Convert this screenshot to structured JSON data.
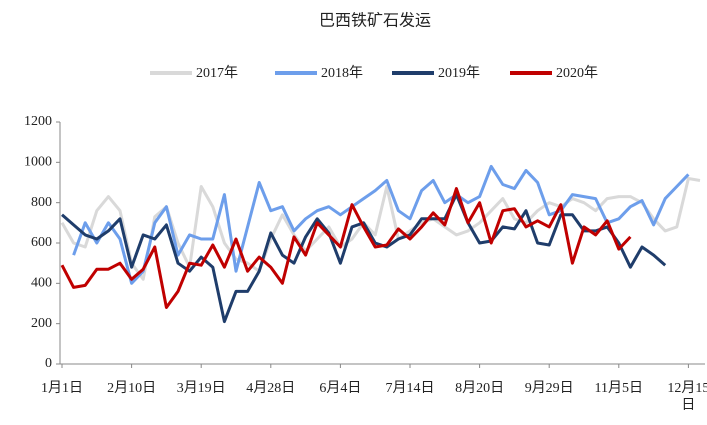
{
  "chart_data": {
    "type": "line",
    "title": "巴西铁矿石发运",
    "categories": [
      "1月1日",
      null,
      null,
      null,
      null,
      null,
      "2月10日",
      null,
      null,
      null,
      null,
      null,
      "3月19日",
      null,
      null,
      null,
      null,
      null,
      "4月28日",
      null,
      null,
      null,
      null,
      null,
      "6月4日",
      null,
      null,
      null,
      null,
      null,
      "7月14日",
      null,
      null,
      null,
      null,
      null,
      "8月20日",
      null,
      null,
      null,
      null,
      null,
      "9月29日",
      null,
      null,
      null,
      null,
      null,
      "11月5日",
      null,
      null,
      null,
      null,
      null,
      "12月15日",
      null
    ],
    "series": [
      {
        "name": "2017年",
        "color": "#d9d9d9",
        "values": [
          700,
          600,
          580,
          760,
          830,
          760,
          500,
          420,
          730,
          780,
          600,
          480,
          880,
          780,
          600,
          520,
          500,
          460,
          620,
          740,
          640,
          560,
          620,
          680,
          580,
          620,
          700,
          640,
          880,
          620,
          660,
          700,
          720,
          680,
          640,
          660,
          700,
          760,
          820,
          720,
          700,
          760,
          800,
          780,
          820,
          800,
          760,
          820,
          830,
          830,
          800,
          720,
          660,
          680,
          920,
          910
        ]
      },
      {
        "name": "2018年",
        "color": "#6d9eeb",
        "values": [
          null,
          540,
          700,
          600,
          700,
          620,
          400,
          460,
          700,
          780,
          540,
          640,
          620,
          620,
          840,
          460,
          680,
          900,
          760,
          780,
          660,
          720,
          760,
          780,
          740,
          780,
          820,
          860,
          910,
          760,
          720,
          860,
          910,
          800,
          840,
          800,
          830,
          980,
          890,
          870,
          960,
          900,
          740,
          760,
          840,
          830,
          820,
          700,
          720,
          780,
          810,
          690,
          820,
          880,
          940,
          null
        ]
      },
      {
        "name": "2019年",
        "color": "#1f3d6b",
        "values": [
          740,
          690,
          640,
          620,
          660,
          720,
          480,
          640,
          620,
          690,
          500,
          460,
          530,
          480,
          210,
          360,
          360,
          460,
          650,
          540,
          500,
          630,
          720,
          650,
          500,
          680,
          700,
          600,
          580,
          620,
          640,
          720,
          720,
          720,
          840,
          700,
          600,
          610,
          680,
          670,
          760,
          600,
          590,
          740,
          740,
          660,
          660,
          680,
          600,
          480,
          580,
          540,
          490,
          null,
          null,
          null
        ]
      },
      {
        "name": "2020年",
        "color": "#c00000",
        "values": [
          490,
          380,
          390,
          470,
          470,
          500,
          420,
          470,
          580,
          280,
          360,
          500,
          490,
          590,
          480,
          620,
          460,
          530,
          480,
          400,
          630,
          540,
          700,
          640,
          580,
          790,
          680,
          580,
          590,
          670,
          620,
          680,
          750,
          690,
          870,
          700,
          800,
          600,
          760,
          770,
          680,
          710,
          680,
          790,
          500,
          680,
          640,
          710,
          570,
          630,
          null,
          null,
          null,
          null,
          null,
          null
        ]
      }
    ],
    "ylim": [
      0,
      1200
    ],
    "yticks": [
      0,
      200,
      400,
      600,
      800,
      1000,
      1200
    ],
    "grid": false,
    "legend": "top"
  }
}
